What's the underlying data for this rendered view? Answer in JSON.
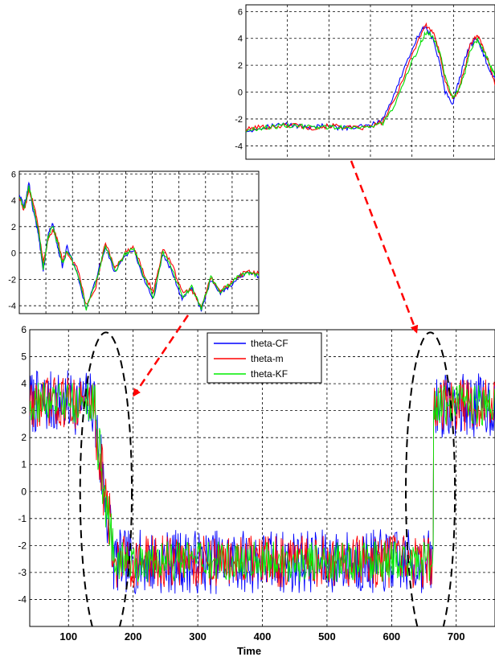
{
  "chart_data": [
    {
      "type": "line",
      "panel": "zoom-top-right",
      "xlim": [
        0,
        1
      ],
      "ylim": [
        -5,
        6.5
      ],
      "yticks": [
        -4,
        -2,
        0,
        2,
        4,
        6
      ],
      "ytick_labels": [
        "-4",
        "-2",
        "0",
        "2",
        "4",
        "6"
      ],
      "xticks_count": 5,
      "grid": true,
      "series": [
        {
          "color": "#0000ff",
          "x": [
            0,
            0.05,
            0.1,
            0.15,
            0.2,
            0.25,
            0.3,
            0.35,
            0.4,
            0.45,
            0.5,
            0.55,
            0.6,
            0.65,
            0.7,
            0.72,
            0.75,
            0.78,
            0.8,
            0.83,
            0.85,
            0.88,
            0.9,
            0.93,
            0.95,
            0.98,
            1.0
          ],
          "y": [
            -2.9,
            -2.7,
            -2.5,
            -2.4,
            -2.5,
            -2.6,
            -2.5,
            -2.6,
            -2.7,
            -2.6,
            -2.5,
            -2.0,
            0.0,
            2.5,
            4.5,
            4.9,
            4.0,
            2.0,
            0.0,
            -1.0,
            0.5,
            2.5,
            3.5,
            4.0,
            3.0,
            1.5,
            1.0
          ]
        },
        {
          "color": "#ff0000",
          "x": [
            0,
            0.05,
            0.1,
            0.15,
            0.2,
            0.25,
            0.3,
            0.35,
            0.4,
            0.45,
            0.5,
            0.55,
            0.6,
            0.65,
            0.7,
            0.72,
            0.75,
            0.78,
            0.8,
            0.83,
            0.85,
            0.88,
            0.9,
            0.93,
            0.95,
            0.98,
            1.0
          ],
          "y": [
            -2.8,
            -2.6,
            -2.6,
            -2.5,
            -2.4,
            -2.7,
            -2.6,
            -2.5,
            -2.6,
            -2.7,
            -2.6,
            -2.2,
            -0.5,
            2.0,
            4.2,
            5.0,
            4.5,
            2.8,
            0.8,
            -0.5,
            0.0,
            1.8,
            3.6,
            4.2,
            3.4,
            2.0,
            0.5
          ]
        },
        {
          "color": "#00dd00",
          "x": [
            0,
            0.05,
            0.1,
            0.15,
            0.2,
            0.25,
            0.3,
            0.35,
            0.4,
            0.45,
            0.5,
            0.55,
            0.6,
            0.65,
            0.7,
            0.72,
            0.75,
            0.78,
            0.8,
            0.83,
            0.85,
            0.88,
            0.9,
            0.93,
            0.95,
            0.98,
            1.0
          ],
          "y": [
            -2.9,
            -2.7,
            -2.6,
            -2.5,
            -2.5,
            -2.6,
            -2.6,
            -2.6,
            -2.6,
            -2.6,
            -2.6,
            -2.3,
            -1.0,
            1.5,
            3.6,
            4.4,
            4.2,
            2.8,
            1.2,
            -0.3,
            0.0,
            1.5,
            3.2,
            3.9,
            3.3,
            2.0,
            1.2
          ]
        }
      ]
    },
    {
      "type": "line",
      "panel": "zoom-middle-left",
      "xlim": [
        0,
        1
      ],
      "ylim": [
        -4.6,
        6.2
      ],
      "yticks": [
        -4,
        -2,
        0,
        2,
        4,
        6
      ],
      "ytick_labels": [
        "-4",
        "-2",
        "0",
        "2",
        "4",
        "6"
      ],
      "xticks_count": 8,
      "grid": true,
      "series": [
        {
          "color": "#0000ff",
          "x": [
            0,
            0.02,
            0.04,
            0.06,
            0.08,
            0.1,
            0.12,
            0.14,
            0.16,
            0.18,
            0.2,
            0.24,
            0.28,
            0.32,
            0.36,
            0.4,
            0.44,
            0.48,
            0.52,
            0.56,
            0.6,
            0.64,
            0.68,
            0.72,
            0.76,
            0.8,
            0.84,
            0.88,
            0.92,
            0.96,
            1.0
          ],
          "y": [
            4.5,
            3.5,
            5.3,
            3.0,
            1.5,
            -1.5,
            1.5,
            2.2,
            0.5,
            -1.0,
            0.5,
            -1.5,
            -4.3,
            -2.0,
            0.5,
            -1.5,
            -0.2,
            0.2,
            -2.0,
            -3.5,
            0.0,
            -1.5,
            -3.5,
            -2.5,
            -4.4,
            -2.0,
            -3.0,
            -2.5,
            -1.8,
            -1.5,
            -1.8
          ]
        },
        {
          "color": "#ff0000",
          "x": [
            0,
            0.02,
            0.04,
            0.06,
            0.08,
            0.1,
            0.12,
            0.14,
            0.16,
            0.18,
            0.2,
            0.24,
            0.28,
            0.32,
            0.36,
            0.4,
            0.44,
            0.48,
            0.52,
            0.56,
            0.6,
            0.64,
            0.68,
            0.72,
            0.76,
            0.8,
            0.84,
            0.88,
            0.92,
            0.96,
            1.0
          ],
          "y": [
            4.2,
            3.2,
            4.8,
            3.8,
            2.0,
            -0.8,
            1.0,
            1.8,
            1.0,
            -0.5,
            0.0,
            -1.0,
            -4.0,
            -2.5,
            0.8,
            -1.2,
            0.0,
            0.4,
            -1.5,
            -3.0,
            0.3,
            -1.0,
            -3.0,
            -2.8,
            -4.0,
            -1.8,
            -2.8,
            -2.3,
            -1.7,
            -1.4,
            -1.6
          ]
        },
        {
          "color": "#00dd00",
          "x": [
            0,
            0.02,
            0.04,
            0.06,
            0.08,
            0.1,
            0.12,
            0.14,
            0.16,
            0.18,
            0.2,
            0.24,
            0.28,
            0.32,
            0.36,
            0.4,
            0.44,
            0.48,
            0.52,
            0.56,
            0.6,
            0.64,
            0.68,
            0.72,
            0.76,
            0.8,
            0.84,
            0.88,
            0.92,
            0.96,
            1.0
          ],
          "y": [
            4.3,
            3.4,
            5.0,
            3.4,
            1.8,
            -1.2,
            1.2,
            2.0,
            0.7,
            -0.8,
            0.2,
            -1.3,
            -4.2,
            -2.2,
            0.6,
            -1.4,
            -0.1,
            0.3,
            -1.8,
            -3.3,
            0.1,
            -1.3,
            -3.3,
            -2.6,
            -4.2,
            -1.9,
            -2.9,
            -2.4,
            -1.7,
            -1.5,
            -1.7
          ]
        }
      ]
    },
    {
      "type": "line",
      "panel": "main-bottom",
      "xlim": [
        40,
        760
      ],
      "ylim": [
        -5,
        6
      ],
      "xticks": [
        100,
        200,
        300,
        400,
        500,
        600,
        700
      ],
      "xtick_labels": [
        "100",
        "200",
        "300",
        "400",
        "500",
        "600",
        "700"
      ],
      "yticks": [
        -4,
        -3,
        -2,
        -1,
        0,
        1,
        2,
        3,
        4,
        5,
        6
      ],
      "ytick_labels": [
        "-4",
        "-3",
        "-2",
        "-1",
        "0",
        "1",
        "2",
        "3",
        "4",
        "5",
        "6"
      ],
      "xlabel": "Time",
      "grid": true,
      "legend_position": "top-center",
      "series": [
        {
          "name": "theta-CF",
          "color": "#0000ff",
          "segments": [
            {
              "x_range": [
                40,
                142
              ],
              "mean": 3.3,
              "noise": 1.6
            },
            {
              "x_range": [
                142,
                170
              ],
              "mean_from": 2.5,
              "mean_to": -2.5,
              "noise": 2.0
            },
            {
              "x_range": [
                170,
                665
              ],
              "mean": -2.6,
              "noise": 1.6
            },
            {
              "x_range": [
                665,
                760
              ],
              "mean": 3.2,
              "noise": 1.6
            }
          ]
        },
        {
          "name": "theta-m",
          "color": "#ff0000",
          "segments": [
            {
              "x_range": [
                40,
                142
              ],
              "mean": 3.3,
              "noise": 1.3
            },
            {
              "x_range": [
                142,
                170
              ],
              "mean_from": 2.5,
              "mean_to": -2.5,
              "noise": 1.8
            },
            {
              "x_range": [
                170,
                665
              ],
              "mean": -2.6,
              "noise": 1.3
            },
            {
              "x_range": [
                665,
                760
              ],
              "mean": 3.2,
              "noise": 1.3
            }
          ]
        },
        {
          "name": "theta-KF",
          "color": "#00ee00",
          "segments": [
            {
              "x_range": [
                40,
                142
              ],
              "mean": 3.3,
              "noise": 1.0
            },
            {
              "x_range": [
                142,
                170
              ],
              "mean_from": 2.5,
              "mean_to": -2.5,
              "noise": 1.5
            },
            {
              "x_range": [
                170,
                665
              ],
              "mean": -2.6,
              "noise": 1.0
            },
            {
              "x_range": [
                665,
                760
              ],
              "mean": 3.2,
              "noise": 1.0
            }
          ]
        }
      ],
      "annotations": [
        {
          "type": "dashed-ellipse",
          "x_center": 158,
          "y_center": 0.0,
          "x_radius": 40,
          "y_radius": 5.9
        },
        {
          "type": "dashed-ellipse",
          "x_center": 660,
          "y_center": 0.0,
          "x_radius": 38,
          "y_radius": 5.9
        }
      ]
    }
  ],
  "arrows": {
    "color": "#ff0000"
  }
}
